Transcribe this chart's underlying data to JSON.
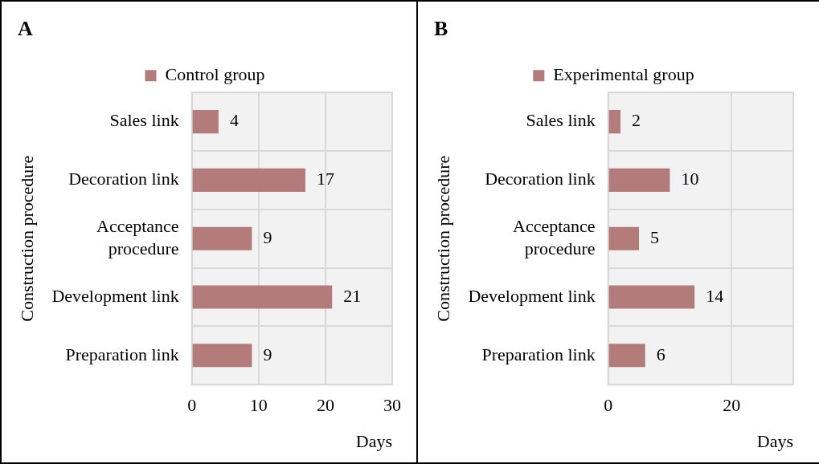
{
  "chart_data": [
    {
      "type": "bar",
      "orientation": "horizontal",
      "title": "A",
      "xlabel": "Days",
      "ylabel": "Construction procedure",
      "categories": [
        "Sales link",
        "Decoration link",
        "Acceptance\nprocedure",
        "Development link",
        "Preparation link"
      ],
      "series": [
        {
          "name": "Control group",
          "color": "#b47b7b",
          "values": [
            4,
            17,
            9,
            21,
            9
          ]
        }
      ],
      "xlim": [
        0,
        30
      ],
      "xticks": [
        0,
        10,
        20,
        30
      ],
      "grid": true,
      "legend": "top",
      "data_labels": true
    },
    {
      "type": "bar",
      "orientation": "horizontal",
      "title": "B",
      "xlabel": "Days",
      "ylabel": "Construction procedure",
      "categories": [
        "Sales link",
        "Decoration link",
        "Acceptance\nprocedure",
        "Development link",
        "Preparation link"
      ],
      "series": [
        {
          "name": "Experimental group",
          "color": "#b47b7b",
          "values": [
            2,
            10,
            5,
            14,
            6
          ]
        }
      ],
      "xlim": [
        0,
        30
      ],
      "xticks": [
        0,
        20
      ],
      "grid": true,
      "legend": "top",
      "data_labels": true
    }
  ]
}
